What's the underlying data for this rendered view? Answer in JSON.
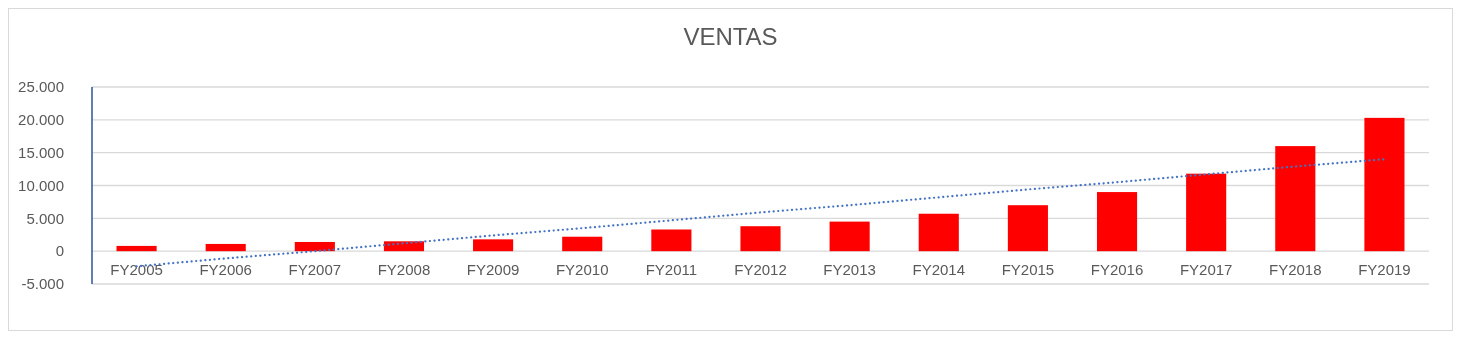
{
  "chart_data": {
    "type": "bar",
    "title": "VENTAS",
    "categories": [
      "FY2005",
      "FY2006",
      "FY2007",
      "FY2008",
      "FY2009",
      "FY2010",
      "FY2011",
      "FY2012",
      "FY2013",
      "FY2014",
      "FY2015",
      "FY2016",
      "FY2017",
      "FY2018",
      "FY2019"
    ],
    "series": [
      {
        "color": "#ff0000",
        "values": [
          800,
          1100,
          1400,
          1500,
          1800,
          2200,
          3300,
          3800,
          4500,
          5700,
          7000,
          9000,
          11800,
          16000,
          20300
        ]
      },
      {
        "type": "line",
        "color": "#4472c4",
        "line_style": "dotted",
        "values": [
          -2300,
          -1100,
          0,
          1200,
          2400,
          3500,
          4700,
          5900,
          7000,
          8200,
          9400,
          10500,
          11700,
          12900,
          14000
        ]
      }
    ],
    "ylim": [
      -5000,
      25000
    ],
    "yticks": [
      {
        "value": -5000,
        "label": "-5.000"
      },
      {
        "value": 0,
        "label": "0"
      },
      {
        "value": 5000,
        "label": "5.000"
      },
      {
        "value": 10000,
        "label": "10.000"
      },
      {
        "value": 15000,
        "label": "15.000"
      },
      {
        "value": 20000,
        "label": "20.000"
      },
      {
        "value": 25000,
        "label": "25.000"
      }
    ],
    "grid": "y"
  }
}
